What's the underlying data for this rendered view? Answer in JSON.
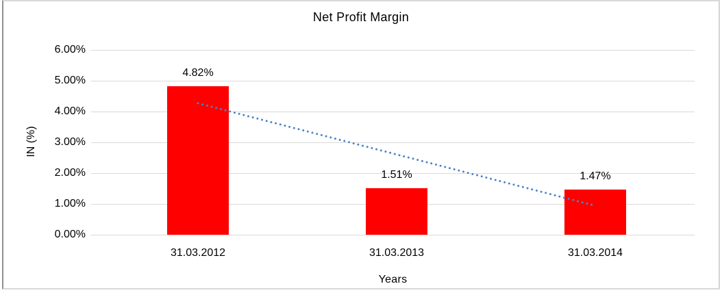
{
  "chart_data": {
    "type": "bar",
    "title": "Net Profit Margin",
    "categories": [
      "31.03.2012",
      "31.03.2013",
      "31.03.2014"
    ],
    "values": [
      4.82,
      1.51,
      1.47
    ],
    "value_labels": [
      "4.82%",
      "1.51%",
      "1.47%"
    ],
    "xlabel": "Years",
    "ylabel": "IN (%)",
    "ylim": [
      0,
      6
    ],
    "ytick_labels": [
      "0.00%",
      "1.00%",
      "2.00%",
      "3.00%",
      "4.00%",
      "5.00%",
      "6.00%"
    ],
    "grid": true,
    "legend": "none",
    "bar_color": "#ff0000",
    "gridline_color": "#d9d9d9",
    "text_color": "#000000",
    "trendline": {
      "type": "linear",
      "style": "dotted",
      "color": "#4a85c4",
      "start_value": 4.27,
      "end_value": 0.96
    }
  }
}
